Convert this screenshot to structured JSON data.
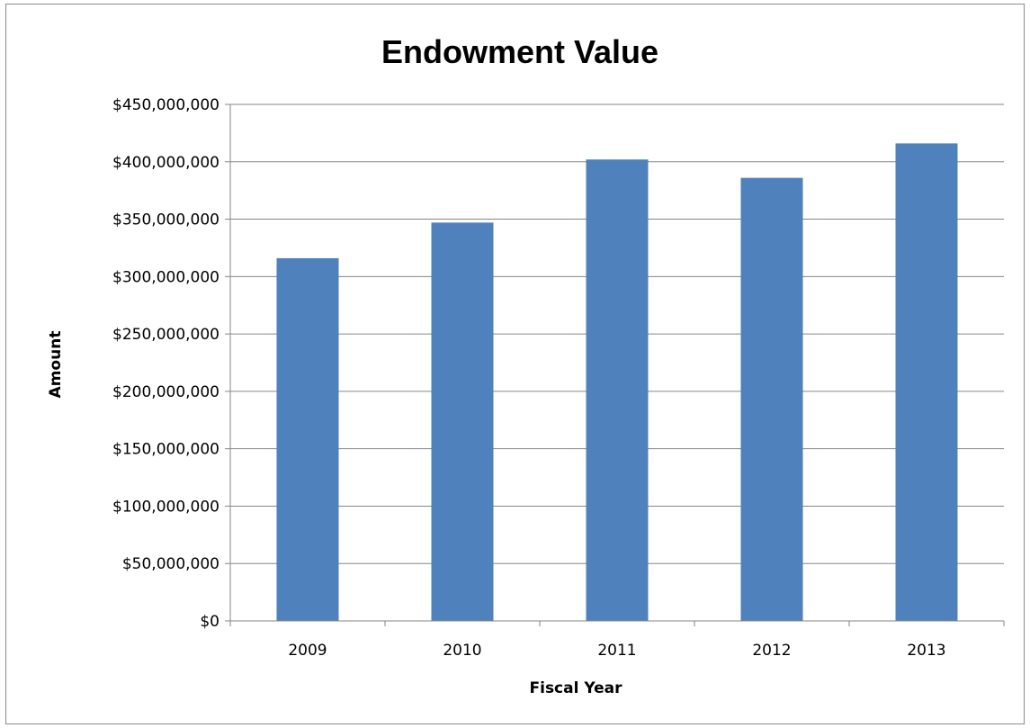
{
  "chart_data": {
    "type": "bar",
    "title": "Endowment Value",
    "xlabel": "Fiscal Year",
    "ylabel": "Amount",
    "categories": [
      "2009",
      "2010",
      "2011",
      "2012",
      "2013"
    ],
    "values": [
      316000000,
      347000000,
      402000000,
      386000000,
      416000000
    ],
    "ylim": [
      0,
      450000000
    ],
    "yticks": [
      0,
      50000000,
      100000000,
      150000000,
      200000000,
      250000000,
      300000000,
      350000000,
      400000000,
      450000000
    ],
    "ytick_labels": [
      "$0",
      "$50,000,000",
      "$100,000,000",
      "$150,000,000",
      "$200,000,000",
      "$250,000,000",
      "$300,000,000",
      "$350,000,000",
      "$400,000,000",
      "$450,000,000"
    ],
    "bar_color": "#4f81bd",
    "grid": true,
    "legend": "none"
  }
}
